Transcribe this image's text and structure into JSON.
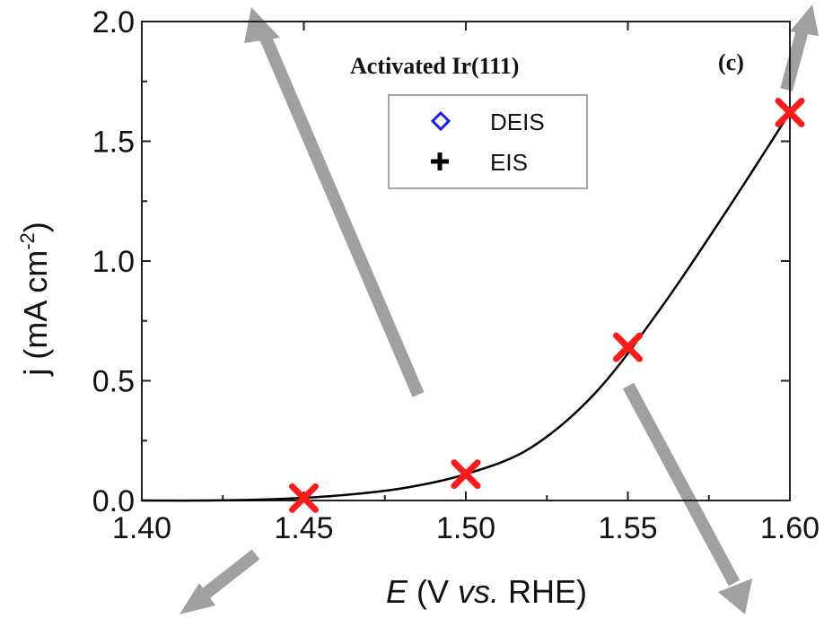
{
  "chart_data": {
    "type": "scatter",
    "title": "Activated Ir(111)",
    "panel_label": "(c)",
    "xlabel_italic": "E",
    "xlabel_rest": " (V ",
    "xlabel_vs": "vs.",
    "xlabel_end": " RHE)",
    "ylabel_main": "j (mA cm",
    "ylabel_sup": "-2",
    "ylabel_close": ")",
    "xlim": [
      1.4,
      1.6
    ],
    "ylim": [
      0.0,
      2.0
    ],
    "x_ticks": [
      "1.40",
      "1.45",
      "1.50",
      "1.55",
      "1.60"
    ],
    "y_ticks": [
      "0.0",
      "0.5",
      "1.0",
      "1.5",
      "2.0"
    ],
    "x_tick_values": [
      1.4,
      1.45,
      1.5,
      1.55,
      1.6
    ],
    "y_tick_values": [
      0.0,
      0.5,
      1.0,
      1.5,
      2.0
    ],
    "legend": [
      {
        "label": "DEIS",
        "marker": "diamond-open",
        "color": "#1a1aff"
      },
      {
        "label": "EIS",
        "marker": "plus",
        "color": "#000000"
      }
    ],
    "series": [
      {
        "name": "EIS",
        "marker": "x",
        "color": "#ff1a1a",
        "x": [
          1.45,
          1.5,
          1.55,
          1.6
        ],
        "y": [
          0.01,
          0.11,
          0.64,
          1.62
        ]
      }
    ],
    "fit_curve": {
      "color": "#000000",
      "x": [
        1.4,
        1.42,
        1.44,
        1.46,
        1.48,
        1.5,
        1.52,
        1.54,
        1.56,
        1.58,
        1.6
      ],
      "y": [
        0.0,
        0.0,
        0.005,
        0.02,
        0.05,
        0.11,
        0.22,
        0.45,
        0.8,
        1.2,
        1.62
      ]
    },
    "grid": false,
    "legend_position": "top-center",
    "overlay_arrow_color": "#a0a0a0"
  }
}
